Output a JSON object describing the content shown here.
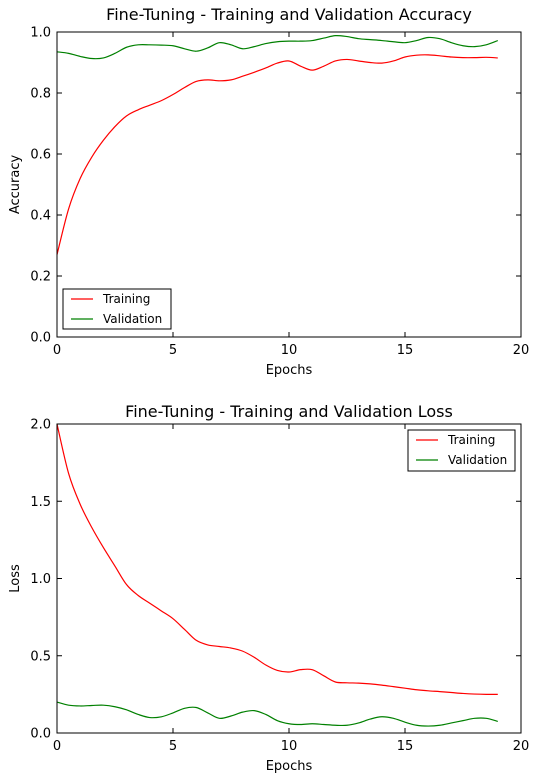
{
  "chart_data": [
    {
      "type": "line",
      "title": "Fine-Tuning - Training and Validation Accuracy",
      "xlabel": "Epochs",
      "ylabel": "Accuracy",
      "xlim": [
        0,
        20
      ],
      "ylim": [
        0,
        1.0
      ],
      "xticks": [
        "0",
        "5",
        "10",
        "15",
        "20"
      ],
      "yticks": [
        "0.0",
        "0.2",
        "0.4",
        "0.6",
        "0.8",
        "1.0"
      ],
      "legend_position": "lower-left",
      "series": [
        {
          "name": "Training",
          "color": "#ff0000",
          "x": [
            0,
            0.5,
            1,
            1.5,
            2,
            2.5,
            3,
            3.5,
            4,
            4.5,
            5,
            5.5,
            6,
            6.5,
            7,
            7.5,
            8,
            8.5,
            9,
            9.5,
            10,
            10.5,
            11,
            11.5,
            12,
            12.5,
            13,
            13.5,
            14,
            14.5,
            15,
            15.5,
            16,
            16.5,
            17,
            17.5,
            18,
            18.5,
            19
          ],
          "values": [
            0.27,
            0.42,
            0.52,
            0.59,
            0.645,
            0.69,
            0.725,
            0.745,
            0.76,
            0.775,
            0.795,
            0.818,
            0.838,
            0.843,
            0.84,
            0.843,
            0.855,
            0.868,
            0.882,
            0.898,
            0.905,
            0.888,
            0.875,
            0.888,
            0.905,
            0.91,
            0.905,
            0.9,
            0.898,
            0.905,
            0.918,
            0.924,
            0.925,
            0.922,
            0.918,
            0.916,
            0.916,
            0.917,
            0.915
          ]
        },
        {
          "name": "Validation",
          "color": "#008000",
          "x": [
            0,
            0.5,
            1,
            1.5,
            2,
            2.5,
            3,
            3.5,
            4,
            4.5,
            5,
            5.5,
            6,
            6.5,
            7,
            7.5,
            8,
            8.5,
            9,
            9.5,
            10,
            10.5,
            11,
            11.5,
            12,
            12.5,
            13,
            13.5,
            14,
            14.5,
            15,
            15.5,
            16,
            16.5,
            17,
            17.5,
            18,
            18.5,
            19
          ],
          "values": [
            0.935,
            0.93,
            0.92,
            0.913,
            0.915,
            0.93,
            0.95,
            0.958,
            0.958,
            0.957,
            0.955,
            0.945,
            0.937,
            0.948,
            0.965,
            0.958,
            0.945,
            0.952,
            0.962,
            0.968,
            0.97,
            0.97,
            0.972,
            0.98,
            0.988,
            0.985,
            0.978,
            0.975,
            0.972,
            0.968,
            0.965,
            0.972,
            0.982,
            0.978,
            0.965,
            0.955,
            0.952,
            0.958,
            0.972
          ]
        }
      ]
    },
    {
      "type": "line",
      "title": "Fine-Tuning - Training and Validation Loss",
      "xlabel": "Epochs",
      "ylabel": "Loss",
      "xlim": [
        0,
        20
      ],
      "ylim": [
        0,
        2.0
      ],
      "xticks": [
        "0",
        "5",
        "10",
        "15",
        "20"
      ],
      "yticks": [
        "0.0",
        "0.5",
        "1.0",
        "1.5",
        "2.0"
      ],
      "legend_position": "upper-right",
      "series": [
        {
          "name": "Training",
          "color": "#ff0000",
          "x": [
            0,
            0.5,
            1,
            1.5,
            2,
            2.5,
            3,
            3.5,
            4,
            4.5,
            5,
            5.5,
            6,
            6.5,
            7,
            7.5,
            8,
            8.5,
            9,
            9.5,
            10,
            10.5,
            11,
            11.5,
            12,
            12.5,
            13,
            13.5,
            14,
            14.5,
            15,
            15.5,
            16,
            16.5,
            17,
            17.5,
            18,
            18.5,
            19
          ],
          "values": [
            2.0,
            1.68,
            1.48,
            1.33,
            1.2,
            1.08,
            0.96,
            0.89,
            0.84,
            0.79,
            0.74,
            0.67,
            0.6,
            0.57,
            0.56,
            0.55,
            0.53,
            0.49,
            0.44,
            0.405,
            0.395,
            0.41,
            0.41,
            0.37,
            0.33,
            0.325,
            0.323,
            0.318,
            0.31,
            0.3,
            0.29,
            0.28,
            0.273,
            0.268,
            0.262,
            0.256,
            0.252,
            0.25,
            0.25
          ]
        },
        {
          "name": "Validation",
          "color": "#008000",
          "x": [
            0,
            0.5,
            1,
            1.5,
            2,
            2.5,
            3,
            3.5,
            4,
            4.5,
            5,
            5.5,
            6,
            6.5,
            7,
            7.5,
            8,
            8.5,
            9,
            9.5,
            10,
            10.5,
            11,
            11.5,
            12,
            12.5,
            13,
            13.5,
            14,
            14.5,
            15,
            15.5,
            16,
            16.5,
            17,
            17.5,
            18,
            18.5,
            19
          ],
          "values": [
            0.2,
            0.18,
            0.175,
            0.178,
            0.18,
            0.17,
            0.15,
            0.12,
            0.1,
            0.105,
            0.13,
            0.16,
            0.165,
            0.13,
            0.095,
            0.11,
            0.135,
            0.145,
            0.12,
            0.08,
            0.06,
            0.055,
            0.06,
            0.055,
            0.05,
            0.05,
            0.065,
            0.09,
            0.105,
            0.095,
            0.07,
            0.05,
            0.045,
            0.05,
            0.065,
            0.08,
            0.095,
            0.095,
            0.075
          ]
        }
      ]
    }
  ]
}
